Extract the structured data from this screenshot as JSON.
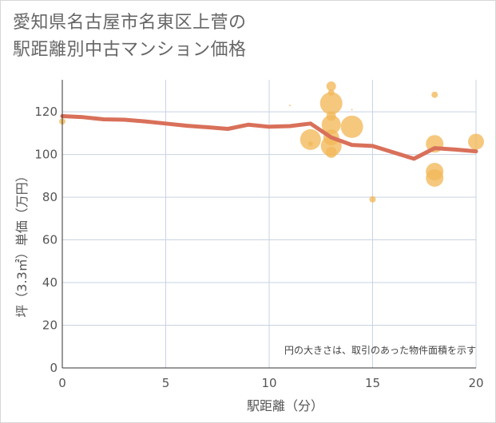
{
  "title_line1": "愛知県名古屋市名東区上菅の",
  "title_line2": "駅距離別中古マンション価格",
  "chart_data": {
    "type": "scatter",
    "title": "愛知県名古屋市名東区上菅の駅距離別中古マンション価格",
    "xlabel": "駅距離（分）",
    "ylabel": "坪（3.3㎡）単価（万円）",
    "xlim": [
      0,
      20
    ],
    "ylim": [
      0,
      135
    ],
    "xticks": [
      "0",
      "5",
      "10",
      "15",
      "20"
    ],
    "yticks": [
      "0",
      "20",
      "40",
      "60",
      "80",
      "100",
      "120"
    ],
    "grid": true,
    "note": "円の大きさは、取引のあった物件面積を示す",
    "colors": {
      "line": "#d9705a",
      "bubble": "#f2b85a",
      "grid": "#c9d3e3"
    },
    "series": [
      {
        "type": "line",
        "x": [
          0,
          1,
          2,
          3,
          4,
          5,
          6,
          7,
          8,
          9,
          10,
          11,
          12,
          13,
          14,
          15,
          16,
          17,
          18,
          19,
          20
        ],
        "values": [
          118,
          117.5,
          116.5,
          116.3,
          115.5,
          114.5,
          113.5,
          112.8,
          112,
          114,
          113,
          113.3,
          114.5,
          108,
          104.5,
          104,
          101,
          98,
          103,
          102.3,
          101.5
        ]
      },
      {
        "type": "scatter",
        "points": [
          {
            "x": 0,
            "y": 115.5,
            "size": 4
          },
          {
            "x": 11,
            "y": 123,
            "size": 1
          },
          {
            "x": 12,
            "y": 107,
            "size": 13
          },
          {
            "x": 12,
            "y": 105,
            "size": 3
          },
          {
            "x": 13,
            "y": 132,
            "size": 6
          },
          {
            "x": 13,
            "y": 129,
            "size": 4
          },
          {
            "x": 13,
            "y": 124,
            "size": 14
          },
          {
            "x": 13,
            "y": 118,
            "size": 6
          },
          {
            "x": 13,
            "y": 114,
            "size": 12
          },
          {
            "x": 13,
            "y": 108,
            "size": 10
          },
          {
            "x": 13,
            "y": 104,
            "size": 13
          },
          {
            "x": 13,
            "y": 101,
            "size": 7
          },
          {
            "x": 14,
            "y": 121,
            "size": 1
          },
          {
            "x": 14,
            "y": 113,
            "size": 14
          },
          {
            "x": 15,
            "y": 79,
            "size": 4
          },
          {
            "x": 18,
            "y": 128,
            "size": 4
          },
          {
            "x": 18,
            "y": 105,
            "size": 11
          },
          {
            "x": 18,
            "y": 92,
            "size": 11
          },
          {
            "x": 18,
            "y": 89,
            "size": 11
          },
          {
            "x": 20,
            "y": 106,
            "size": 10
          }
        ]
      }
    ]
  }
}
